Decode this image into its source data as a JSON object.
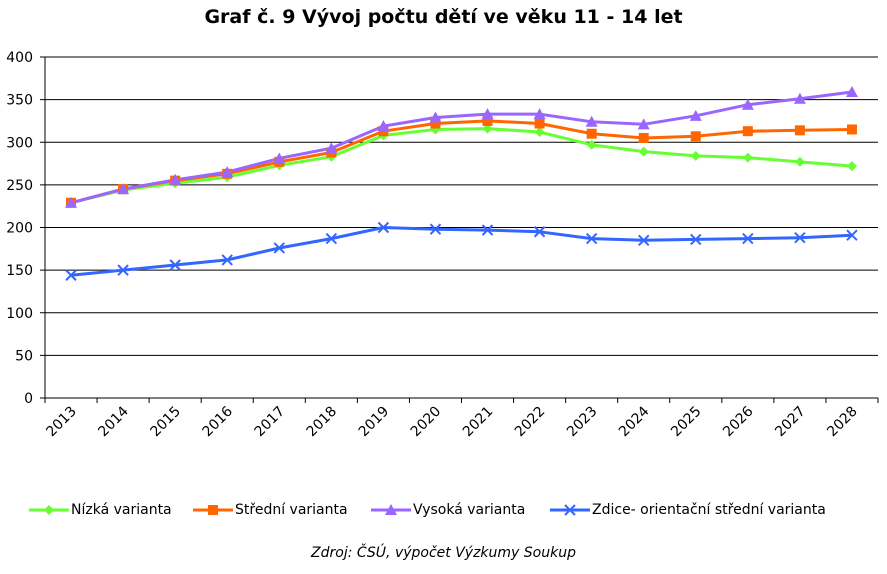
{
  "chart_data": {
    "type": "line",
    "title": "Graf č. 9 Vývoj počtu dětí ve věku 11 - 14 let",
    "xlabel": "",
    "ylabel": "",
    "categories": [
      "2013",
      "2014",
      "2015",
      "2016",
      "2017",
      "2018",
      "2019",
      "2020",
      "2021",
      "2022",
      "2023",
      "2024",
      "2025",
      "2026",
      "2027",
      "2028"
    ],
    "ylim": [
      0,
      400
    ],
    "yticks": [
      0,
      50,
      100,
      150,
      200,
      250,
      300,
      350,
      400
    ],
    "grid": true,
    "legend": "bottom",
    "series": [
      {
        "name": "Nízká varianta",
        "color": "#66ff33",
        "marker": "diamond",
        "values": [
          229,
          244,
          252,
          259,
          273,
          283,
          308,
          315,
          316,
          312,
          297,
          289,
          284,
          282,
          277,
          272
        ]
      },
      {
        "name": "Střední varianta",
        "color": "#ff6600",
        "marker": "square",
        "values": [
          229,
          245,
          255,
          263,
          277,
          288,
          313,
          322,
          325,
          322,
          310,
          305,
          307,
          313,
          314,
          315
        ]
      },
      {
        "name": "Vysoká varianta",
        "color": "#9966ff",
        "marker": "triangle",
        "values": [
          229,
          245,
          256,
          265,
          281,
          293,
          319,
          329,
          333,
          333,
          324,
          321,
          331,
          344,
          351,
          359
        ]
      },
      {
        "name": "Zdice- orientační střední varianta",
        "color": "#3366ff",
        "marker": "x",
        "values": [
          144,
          150,
          156,
          162,
          176,
          187,
          200,
          198,
          197,
          195,
          187,
          185,
          186,
          187,
          188,
          191
        ]
      }
    ]
  },
  "source_note": "Zdroj: ČSÚ, výpočet Výzkumy Soukup"
}
